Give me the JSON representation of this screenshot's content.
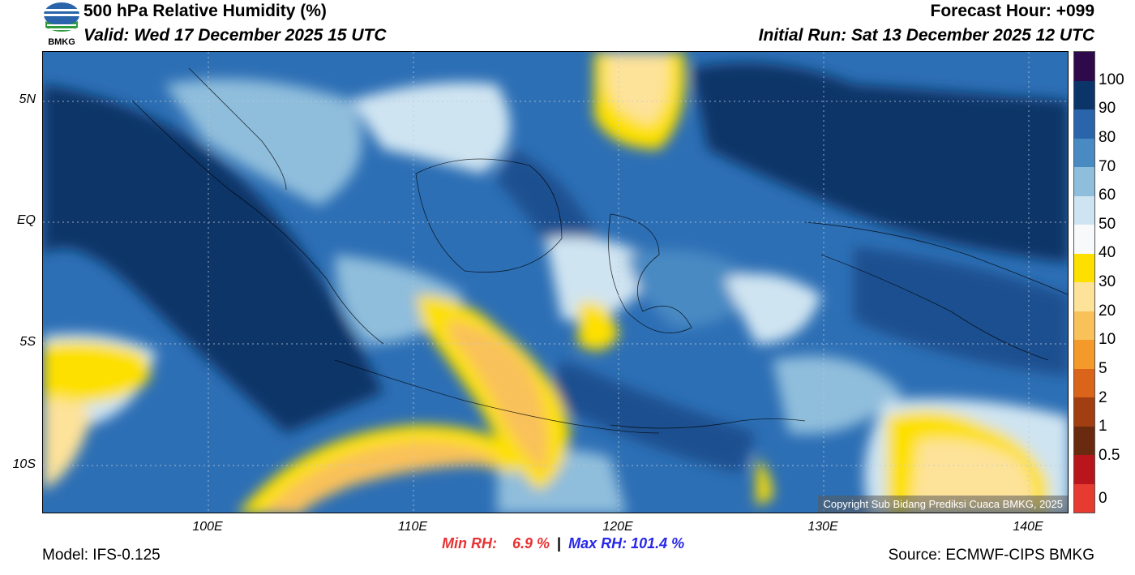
{
  "header": {
    "title": "500 hPa Relative Humidity (%)",
    "valid": "Valid: Wed 17 December 2025 15 UTC",
    "forecast_hour": "Forecast Hour: +099",
    "initial_run": "Initial Run: Sat 13 December 2025 12 UTC",
    "logo_text": "BMKG"
  },
  "map": {
    "lat_ticks": [
      "5N",
      "EQ",
      "5S",
      "10S"
    ],
    "lon_ticks": [
      "100E",
      "110E",
      "120E",
      "130E",
      "140E"
    ],
    "copyright": "Copyright Sub Bidang Prediksi Cuaca BMKG, 2025"
  },
  "colorbar": {
    "labels": [
      "100",
      "90",
      "80",
      "70",
      "60",
      "50",
      "40",
      "30",
      "20",
      "10",
      "5",
      "2",
      "1",
      "0.5",
      "0"
    ],
    "colors": [
      "#2e0a4b",
      "#0b3468",
      "#2a64ab",
      "#4a8ac3",
      "#8fbddc",
      "#cfe4f1",
      "#f7f9fb",
      "#fde000",
      "#fde29a",
      "#f9c15a",
      "#f49a2a",
      "#d9641a",
      "#a13e12",
      "#6a2a10",
      "#b8151c",
      "#e53b30"
    ]
  },
  "stats": {
    "min_label": "Min RH:",
    "min_value": "6.9 %",
    "separator": "|",
    "max_label": "Max RH: 101.4 %"
  },
  "footer": {
    "model": "Model: IFS-0.125",
    "source": "Source: ECMWF-CIPS BMKG"
  }
}
